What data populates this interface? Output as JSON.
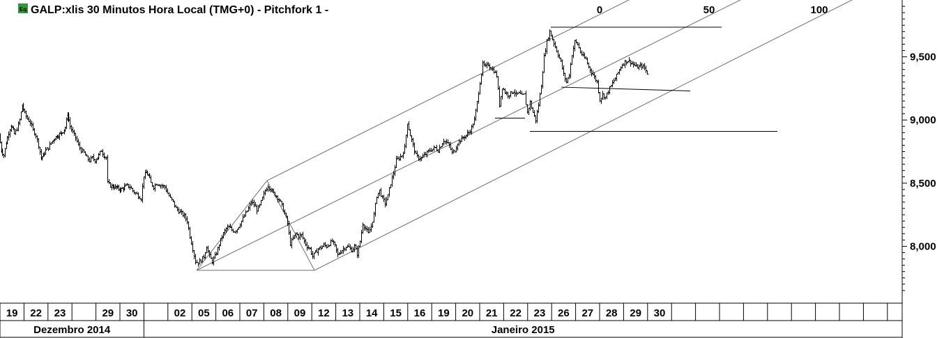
{
  "chart_data": {
    "type": "ohlc",
    "title": "GALP:xlis 30 Minutos Hora Local (TMG+0)  -  Pitchfork 1 -",
    "badge_label": "Eq",
    "pitchfork_labels": [
      "0",
      "50",
      "100"
    ],
    "y_ticks": [
      8000,
      8500,
      9000,
      9500
    ],
    "y_tick_labels": [
      "8,000",
      "8,500",
      "9,000",
      "9,500"
    ],
    "ylim": [
      7550,
      9950
    ],
    "day_labels": [
      "19",
      "22",
      "23",
      "",
      "29",
      "30",
      "",
      "02",
      "05",
      "06",
      "07",
      "08",
      "09",
      "12",
      "13",
      "14",
      "15",
      "16",
      "19",
      "20",
      "21",
      "22",
      "23",
      "26",
      "27",
      "28",
      "29",
      "30",
      "",
      "",
      "",
      "",
      "",
      "",
      "",
      "",
      "",
      ""
    ],
    "months": [
      {
        "label": "Dezembro 2014",
        "from_day": 0,
        "to_day": 6
      },
      {
        "label": "Janeiro 2015",
        "from_day": 6,
        "to_day": 38
      }
    ],
    "series": [
      {
        "values": [
          [
            0,
            8880
          ],
          [
            3,
            8760
          ],
          [
            7,
            8720
          ],
          [
            10,
            8820
          ],
          [
            14,
            8900
          ],
          [
            17,
            8960
          ],
          [
            22,
            8890
          ],
          [
            26,
            8930
          ],
          [
            30,
            9000
          ],
          [
            33,
            9120
          ],
          [
            37,
            9050
          ],
          [
            41,
            9010
          ],
          [
            45,
            8980
          ],
          [
            49,
            8920
          ],
          [
            53,
            8880
          ],
          [
            57,
            8800
          ],
          [
            60,
            8700
          ],
          [
            63,
            8720
          ],
          [
            67,
            8760
          ],
          [
            71,
            8780
          ],
          [
            75,
            8820
          ],
          [
            80,
            8860
          ],
          [
            85,
            8880
          ],
          [
            90,
            8900
          ],
          [
            95,
            8940
          ],
          [
            98,
            9050
          ],
          [
            102,
            8950
          ],
          [
            106,
            8900
          ],
          [
            110,
            8860
          ],
          [
            114,
            8800
          ],
          [
            118,
            8760
          ],
          [
            122,
            8740
          ],
          [
            126,
            8700
          ],
          [
            130,
            8680
          ],
          [
            134,
            8700
          ],
          [
            138,
            8680
          ],
          [
            143,
            8720
          ],
          [
            147,
            8760
          ],
          [
            150,
            8720
          ],
          [
            154,
            8700
          ],
          [
            156,
            8500
          ],
          [
            160,
            8480
          ],
          [
            165,
            8470
          ],
          [
            170,
            8460
          ],
          [
            175,
            8450
          ],
          [
            180,
            8470
          ],
          [
            184,
            8480
          ],
          [
            188,
            8470
          ],
          [
            192,
            8440
          ],
          [
            196,
            8420
          ],
          [
            200,
            8400
          ],
          [
            204,
            8380
          ],
          [
            208,
            8560
          ],
          [
            211,
            8580
          ],
          [
            214,
            8560
          ],
          [
            218,
            8500
          ],
          [
            222,
            8470
          ],
          [
            226,
            8500
          ],
          [
            230,
            8490
          ],
          [
            234,
            8480
          ],
          [
            238,
            8470
          ],
          [
            242,
            8420
          ],
          [
            246,
            8380
          ],
          [
            250,
            8350
          ],
          [
            254,
            8300
          ],
          [
            258,
            8280
          ],
          [
            262,
            8260
          ],
          [
            266,
            8240
          ],
          [
            270,
            8200
          ],
          [
            274,
            8080
          ],
          [
            278,
            7980
          ],
          [
            282,
            7880
          ],
          [
            286,
            7870
          ],
          [
            290,
            7890
          ],
          [
            294,
            7920
          ],
          [
            298,
            8000
          ],
          [
            302,
            7920
          ],
          [
            306,
            7880
          ],
          [
            310,
            7920
          ],
          [
            314,
            7980
          ],
          [
            318,
            8050
          ],
          [
            322,
            8100
          ],
          [
            326,
            8140
          ],
          [
            330,
            8150
          ],
          [
            334,
            8130
          ],
          [
            338,
            8120
          ],
          [
            342,
            8140
          ],
          [
            346,
            8180
          ],
          [
            350,
            8220
          ],
          [
            354,
            8260
          ],
          [
            358,
            8300
          ],
          [
            362,
            8350
          ],
          [
            366,
            8330
          ],
          [
            370,
            8290
          ],
          [
            374,
            8320
          ],
          [
            378,
            8380
          ],
          [
            382,
            8440
          ],
          [
            386,
            8480
          ],
          [
            390,
            8450
          ],
          [
            394,
            8420
          ],
          [
            398,
            8400
          ],
          [
            402,
            8370
          ],
          [
            406,
            8320
          ],
          [
            410,
            8260
          ],
          [
            414,
            8180
          ],
          [
            418,
            8020
          ],
          [
            422,
            8060
          ],
          [
            426,
            8100
          ],
          [
            430,
            8080
          ],
          [
            434,
            8090
          ],
          [
            438,
            8040
          ],
          [
            442,
            8000
          ],
          [
            446,
            7980
          ],
          [
            450,
            7920
          ],
          [
            454,
            7950
          ],
          [
            458,
            7980
          ],
          [
            462,
            7990
          ],
          [
            466,
            8010
          ],
          [
            470,
            8000
          ],
          [
            474,
            8020
          ],
          [
            478,
            8040
          ],
          [
            482,
            8000
          ],
          [
            486,
            7930
          ],
          [
            490,
            7960
          ],
          [
            494,
            7980
          ],
          [
            498,
            8000
          ],
          [
            502,
            7990
          ],
          [
            506,
            7970
          ],
          [
            510,
            8000
          ],
          [
            514,
            7940
          ],
          [
            518,
            8040
          ],
          [
            522,
            8180
          ],
          [
            526,
            8140
          ],
          [
            530,
            8100
          ],
          [
            534,
            8160
          ],
          [
            538,
            8250
          ],
          [
            542,
            8400
          ],
          [
            546,
            8440
          ],
          [
            550,
            8380
          ],
          [
            554,
            8340
          ],
          [
            558,
            8400
          ],
          [
            562,
            8500
          ],
          [
            566,
            8580
          ],
          [
            570,
            8680
          ],
          [
            574,
            8700
          ],
          [
            578,
            8720
          ],
          [
            582,
            8780
          ],
          [
            586,
            8980
          ],
          [
            590,
            8880
          ],
          [
            594,
            8800
          ],
          [
            598,
            8720
          ],
          [
            602,
            8700
          ],
          [
            606,
            8700
          ],
          [
            610,
            8720
          ],
          [
            614,
            8740
          ],
          [
            618,
            8760
          ],
          [
            622,
            8770
          ],
          [
            626,
            8780
          ],
          [
            630,
            8760
          ],
          [
            634,
            8800
          ],
          [
            638,
            8840
          ],
          [
            642,
            8820
          ],
          [
            646,
            8800
          ],
          [
            650,
            8740
          ],
          [
            654,
            8760
          ],
          [
            658,
            8820
          ],
          [
            662,
            8840
          ],
          [
            666,
            8860
          ],
          [
            670,
            8880
          ],
          [
            674,
            8900
          ],
          [
            678,
            8940
          ],
          [
            682,
            9000
          ],
          [
            686,
            9140
          ],
          [
            690,
            9300
          ],
          [
            694,
            9440
          ],
          [
            698,
            9420
          ],
          [
            702,
            9440
          ],
          [
            706,
            9410
          ],
          [
            710,
            9390
          ],
          [
            714,
            9350
          ],
          [
            718,
            9120
          ],
          [
            722,
            9260
          ],
          [
            726,
            9220
          ],
          [
            730,
            9200
          ],
          [
            734,
            9210
          ],
          [
            738,
            9230
          ],
          [
            742,
            9200
          ],
          [
            746,
            9210
          ],
          [
            750,
            9190
          ],
          [
            754,
            9200
          ],
          [
            758,
            9060
          ],
          [
            762,
            9140
          ],
          [
            766,
            9060
          ],
          [
            770,
            9000
          ],
          [
            774,
            9120
          ],
          [
            778,
            9280
          ],
          [
            782,
            9500
          ],
          [
            786,
            9620
          ],
          [
            790,
            9700
          ],
          [
            794,
            9640
          ],
          [
            798,
            9580
          ],
          [
            802,
            9520
          ],
          [
            806,
            9460
          ],
          [
            810,
            9360
          ],
          [
            814,
            9300
          ],
          [
            818,
            9360
          ],
          [
            822,
            9520
          ],
          [
            826,
            9620
          ],
          [
            830,
            9600
          ],
          [
            834,
            9540
          ],
          [
            838,
            9500
          ],
          [
            842,
            9480
          ],
          [
            846,
            9420
          ],
          [
            850,
            9380
          ],
          [
            854,
            9340
          ],
          [
            858,
            9300
          ],
          [
            862,
            9160
          ],
          [
            866,
            9200
          ],
          [
            870,
            9180
          ],
          [
            874,
            9230
          ],
          [
            878,
            9270
          ],
          [
            882,
            9310
          ],
          [
            886,
            9350
          ],
          [
            890,
            9400
          ],
          [
            894,
            9440
          ],
          [
            898,
            9460
          ],
          [
            902,
            9470
          ],
          [
            906,
            9460
          ],
          [
            910,
            9440
          ],
          [
            914,
            9420
          ],
          [
            918,
            9420
          ],
          [
            922,
            9430
          ],
          [
            926,
            9410
          ],
          [
            930,
            9370
          ]
        ]
      }
    ],
    "pitchfork": {
      "pivots": [
        [
          282,
          7810
        ],
        [
          383,
          8520
        ],
        [
          451,
          7810
        ]
      ],
      "median_end": [
        1080,
        10000
      ],
      "upper_end": [
        920,
        10000
      ],
      "lower_end": [
        1240,
        10000
      ]
    },
    "hlines": [
      {
        "x1": 790,
        "x2": 1035,
        "y": 9735
      },
      {
        "x1": 710,
        "x2": 753,
        "y": 9015
      },
      {
        "x1": 760,
        "x2": 1115,
        "y": 8910
      }
    ],
    "trendlines": [
      {
        "x1": 805,
        "y1": 9260,
        "x2": 990,
        "y2": 9230
      }
    ],
    "colors": {
      "background": "#ffffff",
      "bars": "#000000",
      "lines": "#000000",
      "pitchfork": "#6e6e6e",
      "badge": "#2e9a3a"
    }
  }
}
